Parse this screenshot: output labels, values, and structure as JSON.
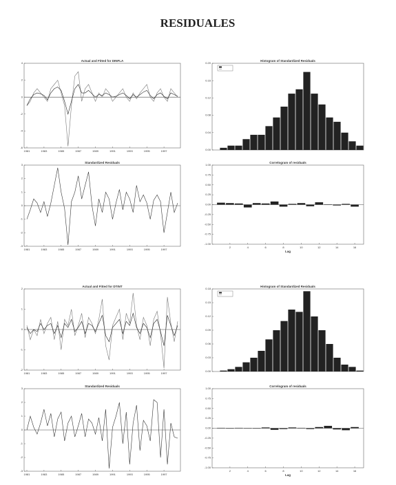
{
  "title": "RESIDUALES",
  "chart_data": [
    {
      "type": "line",
      "title": "Actual and Fitted for DINFLA",
      "categories": [
        "1981",
        null,
        null,
        null,
        null,
        "1983",
        null,
        null,
        null,
        null,
        "1985",
        null,
        null,
        null,
        null,
        "1987",
        null,
        null,
        null,
        null,
        "1989",
        null,
        null,
        null,
        null,
        "1991",
        null,
        null,
        null,
        null,
        "1993",
        null,
        null,
        null,
        null,
        "1995",
        null,
        null,
        null,
        null,
        "1997",
        null,
        null,
        null,
        null
      ],
      "series": [
        {
          "color": "#777777",
          "values": [
            -1,
            -0.5,
            0.5,
            1,
            0.5,
            0,
            -0.5,
            1,
            1.5,
            2,
            0.5,
            -1,
            -5.8,
            -1,
            2.5,
            3,
            -0.5,
            1,
            1.5,
            0.5,
            -0.5,
            0.5,
            0,
            1,
            0.5,
            -0.5,
            0,
            0.5,
            1,
            0,
            -0.5,
            0.5,
            -0.2,
            0.5,
            1,
            1.5,
            0,
            -0.5,
            0.5,
            1,
            0,
            -0.5,
            1,
            0.5,
            0
          ]
        },
        {
          "color": "#222222",
          "values": [
            -1,
            -0.2,
            0.3,
            0.5,
            0.4,
            0.2,
            -0.3,
            0.5,
            1,
            1.2,
            0.8,
            -0.5,
            -2,
            -0.5,
            1,
            1.5,
            0.5,
            0.5,
            0.8,
            0.4,
            0,
            0.3,
            0.2,
            0.5,
            0.3,
            0,
            0.1,
            0.3,
            0.5,
            0.2,
            -0.2,
            0.3,
            0,
            0.3,
            0.6,
            0.8,
            0.2,
            -0.2,
            0.3,
            0.5,
            0.1,
            -0.2,
            0.5,
            0.3,
            0.1
          ]
        }
      ],
      "ylim": [
        -6,
        4
      ],
      "yticks": [
        -6,
        -4,
        -2,
        0,
        2,
        4
      ]
    },
    {
      "type": "histogram",
      "title": "Histogram of Standardized Residuals",
      "bins": [
        -3,
        -2.75,
        -2.5,
        -2.25,
        -2,
        -1.75,
        -1.5,
        -1.25,
        -1,
        -0.75,
        -0.5,
        -0.25,
        0,
        0.25,
        0.5,
        0.75,
        1,
        1.25,
        1.5,
        1.75,
        2
      ],
      "counts": [
        0,
        0.005,
        0.01,
        0.01,
        0.025,
        0.035,
        0.035,
        0.055,
        0.075,
        0.1,
        0.13,
        0.14,
        0.18,
        0.13,
        0.105,
        0.075,
        0.065,
        0.04,
        0.02,
        0.01
      ],
      "color": "#222222",
      "xlim": [
        -3,
        2
      ],
      "ylim": [
        0,
        0.2
      ],
      "yticks": [
        {
          "value": 0,
          "label": "0.00"
        },
        0.04,
        0.08,
        0.12,
        0.16,
        {
          "value": 0.2,
          "label": "0.20"
        }
      ]
    },
    {
      "type": "line",
      "title": "Standardized Residuals",
      "categories": [
        "1981",
        null,
        null,
        null,
        null,
        "1983",
        null,
        null,
        null,
        null,
        "1985",
        null,
        null,
        null,
        null,
        "1987",
        null,
        null,
        null,
        null,
        "1989",
        null,
        null,
        null,
        null,
        "1991",
        null,
        null,
        null,
        null,
        "1993",
        null,
        null,
        null,
        null,
        "1995",
        null,
        null,
        null,
        null,
        "1997",
        null,
        null,
        null,
        null
      ],
      "series": [
        {
          "color": "#333333",
          "values": [
            -1,
            -0.3,
            0.5,
            0.2,
            -0.5,
            0.3,
            -0.8,
            0.2,
            1.5,
            2.8,
            1,
            -0.2,
            -2.9,
            0.3,
            1,
            2.2,
            0.5,
            1.5,
            2.5,
            0,
            -1.5,
            0.5,
            -0.5,
            1,
            0.5,
            -1,
            0.2,
            1.2,
            -0.3,
            1,
            0.5,
            -0.5,
            1.5,
            0.3,
            0.8,
            0.2,
            -1,
            0.4,
            0.8,
            0.3,
            -2,
            -0.5,
            1,
            -0.5,
            0.2
          ]
        }
      ],
      "ylim": [
        -3,
        3
      ],
      "yticks": [
        -3,
        -2,
        -1,
        0,
        1,
        2,
        3
      ]
    },
    {
      "type": "bar",
      "title": "Correlogram of residuals",
      "xlabel": "Lag",
      "x": [
        1,
        2,
        3,
        4,
        5,
        6,
        7,
        8,
        9,
        10,
        11,
        12,
        13,
        14,
        15,
        16
      ],
      "values": [
        0.05,
        0.04,
        0.03,
        -0.07,
        0.04,
        0.03,
        0.08,
        -0.05,
        0.02,
        0.04,
        -0.04,
        0.06,
        0.01,
        -0.02,
        0.02,
        -0.05
      ],
      "color": "#222222",
      "xlim": [
        0,
        17
      ],
      "xticks": [
        2,
        4,
        6,
        8,
        10,
        12,
        14,
        16
      ],
      "ylim": [
        -1,
        1
      ],
      "yticks": [
        {
          "value": -1,
          "label": "-1.00"
        },
        -0.75,
        {
          "value": -0.5,
          "label": "-0.50"
        },
        -0.25,
        {
          "value": 0,
          "label": "0.00"
        },
        0.25,
        {
          "value": 0.5,
          "label": "0.50"
        },
        0.75,
        {
          "value": 1,
          "label": "1.00"
        }
      ]
    },
    {
      "type": "line",
      "title": "Actual and Fitted for DTINT",
      "categories": [
        "1981",
        null,
        null,
        null,
        null,
        "1983",
        null,
        null,
        null,
        null,
        "1985",
        null,
        null,
        null,
        null,
        "1987",
        null,
        null,
        null,
        null,
        "1989",
        null,
        null,
        null,
        null,
        "1991",
        null,
        null,
        null,
        null,
        "1993",
        null,
        null,
        null,
        null,
        "1995",
        null,
        null,
        null,
        null,
        "1997",
        null,
        null,
        null,
        null
      ],
      "series": [
        {
          "color": "#777777",
          "values": [
            0.2,
            -0.5,
            0,
            -0.3,
            0.5,
            -0.2,
            0.3,
            0.6,
            -0.5,
            0.4,
            -1,
            0.5,
            0.2,
            1,
            -0.3,
            0.2,
            0.8,
            -0.4,
            0.6,
            0.3,
            -0.2,
            0.5,
            1.5,
            -0.8,
            -1.5,
            0.2,
            0.6,
            1,
            -0.5,
            0.8,
            0.3,
            1.8,
            0.2,
            -0.5,
            0.6,
            0.2,
            -0.8,
            0.5,
            0.9,
            -0.2,
            -1.9,
            1.6,
            0.3,
            -0.6,
            0.4
          ]
        },
        {
          "color": "#222222",
          "values": [
            0.1,
            -0.2,
            0,
            -0.1,
            0.3,
            0,
            0.2,
            0.3,
            -0.2,
            0.2,
            -0.4,
            0.3,
            0.1,
            0.5,
            -0.1,
            0.1,
            0.4,
            -0.2,
            0.3,
            0.2,
            -0.1,
            0.3,
            0.7,
            -0.3,
            -0.6,
            0.1,
            0.3,
            0.5,
            -0.2,
            0.4,
            0.2,
            0.8,
            0.1,
            -0.2,
            0.3,
            0.1,
            -0.4,
            0.3,
            0.5,
            -0.1,
            -0.8,
            0.7,
            0.2,
            -0.3,
            0.2
          ]
        }
      ],
      "ylim": [
        -2,
        2
      ],
      "yticks": [
        -2,
        -1,
        0,
        1,
        2
      ]
    },
    {
      "type": "histogram",
      "title": "Histogram of Standardized Residuals",
      "bins": [
        -3,
        -2.75,
        -2.5,
        -2.25,
        -2,
        -1.75,
        -1.5,
        -1.25,
        -1,
        -0.75,
        -0.5,
        -0.25,
        0,
        0.25,
        0.5,
        0.75,
        1,
        1.25,
        1.5,
        1.75,
        2
      ],
      "counts": [
        0,
        0.002,
        0.005,
        0.01,
        0.02,
        0.03,
        0.045,
        0.07,
        0.09,
        0.11,
        0.135,
        0.13,
        0.175,
        0.12,
        0.09,
        0.06,
        0.03,
        0.015,
        0.01,
        0.002
      ],
      "color": "#222222",
      "xlim": [
        -3,
        2
      ],
      "ylim": [
        0,
        0.18
      ],
      "yticks": [
        {
          "value": 0,
          "label": "0.00"
        },
        0.03,
        0.06,
        0.09,
        0.12,
        0.15,
        0.18
      ]
    },
    {
      "type": "line",
      "title": "Standardized Residuals",
      "categories": [
        "1981",
        null,
        null,
        null,
        null,
        "1983",
        null,
        null,
        null,
        null,
        "1985",
        null,
        null,
        null,
        null,
        "1987",
        null,
        null,
        null,
        null,
        "1989",
        null,
        null,
        null,
        null,
        "1991",
        null,
        null,
        null,
        null,
        "1993",
        null,
        null,
        null,
        null,
        "1995",
        null,
        null,
        null,
        null,
        "1997",
        null,
        null,
        null,
        null
      ],
      "series": [
        {
          "color": "#333333",
          "values": [
            0,
            1,
            0.2,
            -0.3,
            0.5,
            1.5,
            0.3,
            1.2,
            -0.5,
            0.8,
            1.3,
            -0.8,
            0.5,
            1,
            -0.5,
            0.3,
            1.2,
            -0.5,
            0.8,
            0.5,
            -0.3,
            0.9,
            -0.8,
            1.5,
            -2.8,
            0.2,
            1,
            2,
            -1,
            1.3,
            -2.5,
            0.5,
            1.8,
            -1.5,
            0.7,
            0.3,
            -0.8,
            2.2,
            2,
            -2,
            1.5,
            -2.5,
            0.5,
            -0.5,
            -0.6
          ]
        }
      ],
      "ylim": [
        -3,
        3
      ],
      "yticks": [
        -3,
        -2,
        -1,
        0,
        1,
        2,
        3
      ]
    },
    {
      "type": "bar",
      "title": "Correlogram of residuals",
      "xlabel": "Lag",
      "x": [
        1,
        2,
        3,
        4,
        5,
        6,
        7,
        8,
        9,
        10,
        11,
        12,
        13,
        14,
        15,
        16
      ],
      "values": [
        0.01,
        -0.01,
        0.01,
        0,
        -0.01,
        0.02,
        -0.04,
        -0.02,
        0.02,
        0.01,
        -0.02,
        0.03,
        0.06,
        -0.03,
        -0.05,
        0.03
      ],
      "color": "#222222",
      "xlim": [
        0,
        17
      ],
      "xticks": [
        2,
        4,
        6,
        8,
        10,
        12,
        14,
        16
      ],
      "ylim": [
        -1,
        1
      ],
      "yticks": [
        {
          "value": -1,
          "label": "-1.00"
        },
        -0.75,
        {
          "value": -0.5,
          "label": "-0.50"
        },
        -0.25,
        {
          "value": 0,
          "label": "0.00"
        },
        0.25,
        {
          "value": 0.5,
          "label": "0.50"
        },
        0.75,
        {
          "value": 1,
          "label": "1.00"
        }
      ]
    }
  ]
}
